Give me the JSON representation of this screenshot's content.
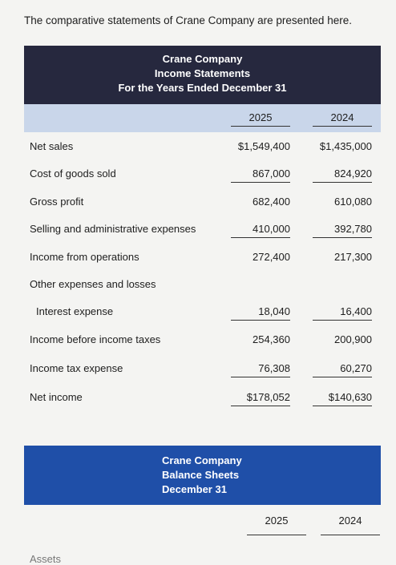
{
  "intro": "The comparative statements of Crane Company are presented here.",
  "income_statement": {
    "title": [
      "Crane Company",
      "Income Statements",
      "For the Years Ended December 31"
    ],
    "years": [
      "2025",
      "2024"
    ],
    "rows": [
      {
        "label": "Net sales",
        "values": [
          "$1,549,400",
          "$1,435,000"
        ]
      },
      {
        "label": "Cost of goods sold",
        "values": [
          "867,000",
          "824,920"
        ]
      },
      {
        "label": "Gross profit",
        "values": [
          "682,400",
          "610,080"
        ]
      },
      {
        "label": "Selling and administrative expenses",
        "values": [
          "410,000",
          "392,780"
        ]
      },
      {
        "label": "Income from operations",
        "values": [
          "272,400",
          "217,300"
        ]
      },
      {
        "label": "Other expenses and losses",
        "values": []
      },
      {
        "label": "Interest expense",
        "values": [
          "18,040",
          "16,400"
        ]
      },
      {
        "label": "Income before income taxes",
        "values": [
          "254,360",
          "200,900"
        ]
      },
      {
        "label": "Income tax expense",
        "values": [
          "76,308",
          "60,270"
        ]
      },
      {
        "label": "Net income",
        "values": [
          "$178,052",
          "$140,630"
        ]
      }
    ]
  },
  "balance_sheet": {
    "title": [
      "Crane Company",
      "Balance Sheets",
      "December 31"
    ],
    "years": [
      "2025",
      "2024"
    ],
    "first_label": "Assets"
  }
}
